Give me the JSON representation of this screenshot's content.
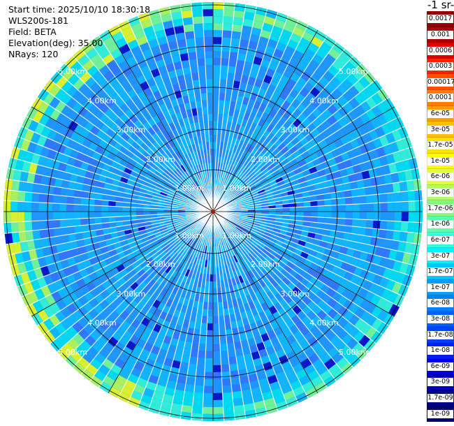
{
  "info": {
    "start_time": "Start time: 2025/10/10 18:30:18",
    "station": "WLS200s-181",
    "field": "Field: BETA",
    "elevation": "Elevation(deg): 35.00",
    "nrays": "NRays: 120"
  },
  "colorbar": {
    "title": "-1 sr-",
    "labels": [
      "0.0017",
      "0.001",
      "0.0006",
      "0.0003",
      "0.00017",
      "0.0001",
      "6e-05",
      "3e-05",
      "1.7e-05",
      "1e-05",
      "6e-06",
      "3e-06",
      "1.7e-06",
      "1e-06",
      "6e-07",
      "3e-07",
      "1.7e-07",
      "1e-07",
      "6e-08",
      "3e-08",
      "1.7e-08",
      "1e-08",
      "6e-09",
      "3e-09",
      "1.7e-09",
      "1e-09"
    ],
    "colors": [
      "#8b0000",
      "#b00000",
      "#e00000",
      "#ff2000",
      "#ff5000",
      "#ff8000",
      "#ffa000",
      "#ffc000",
      "#ffe000",
      "#ffff00",
      "#e0ff40",
      "#b0ff60",
      "#80ff80",
      "#60ffb0",
      "#30ffe0",
      "#00f0ff",
      "#00c8ff",
      "#00a0ff",
      "#0080ff",
      "#0060ff",
      "#0040ff",
      "#0020f0",
      "#0000e0",
      "#0000b0",
      "#000090",
      "#000070"
    ]
  },
  "range_labels": {
    "r1": "1.00km",
    "r2": "2.00km",
    "r3": "3.00km",
    "r4": "4.00km",
    "r5": "5.00km"
  }
}
